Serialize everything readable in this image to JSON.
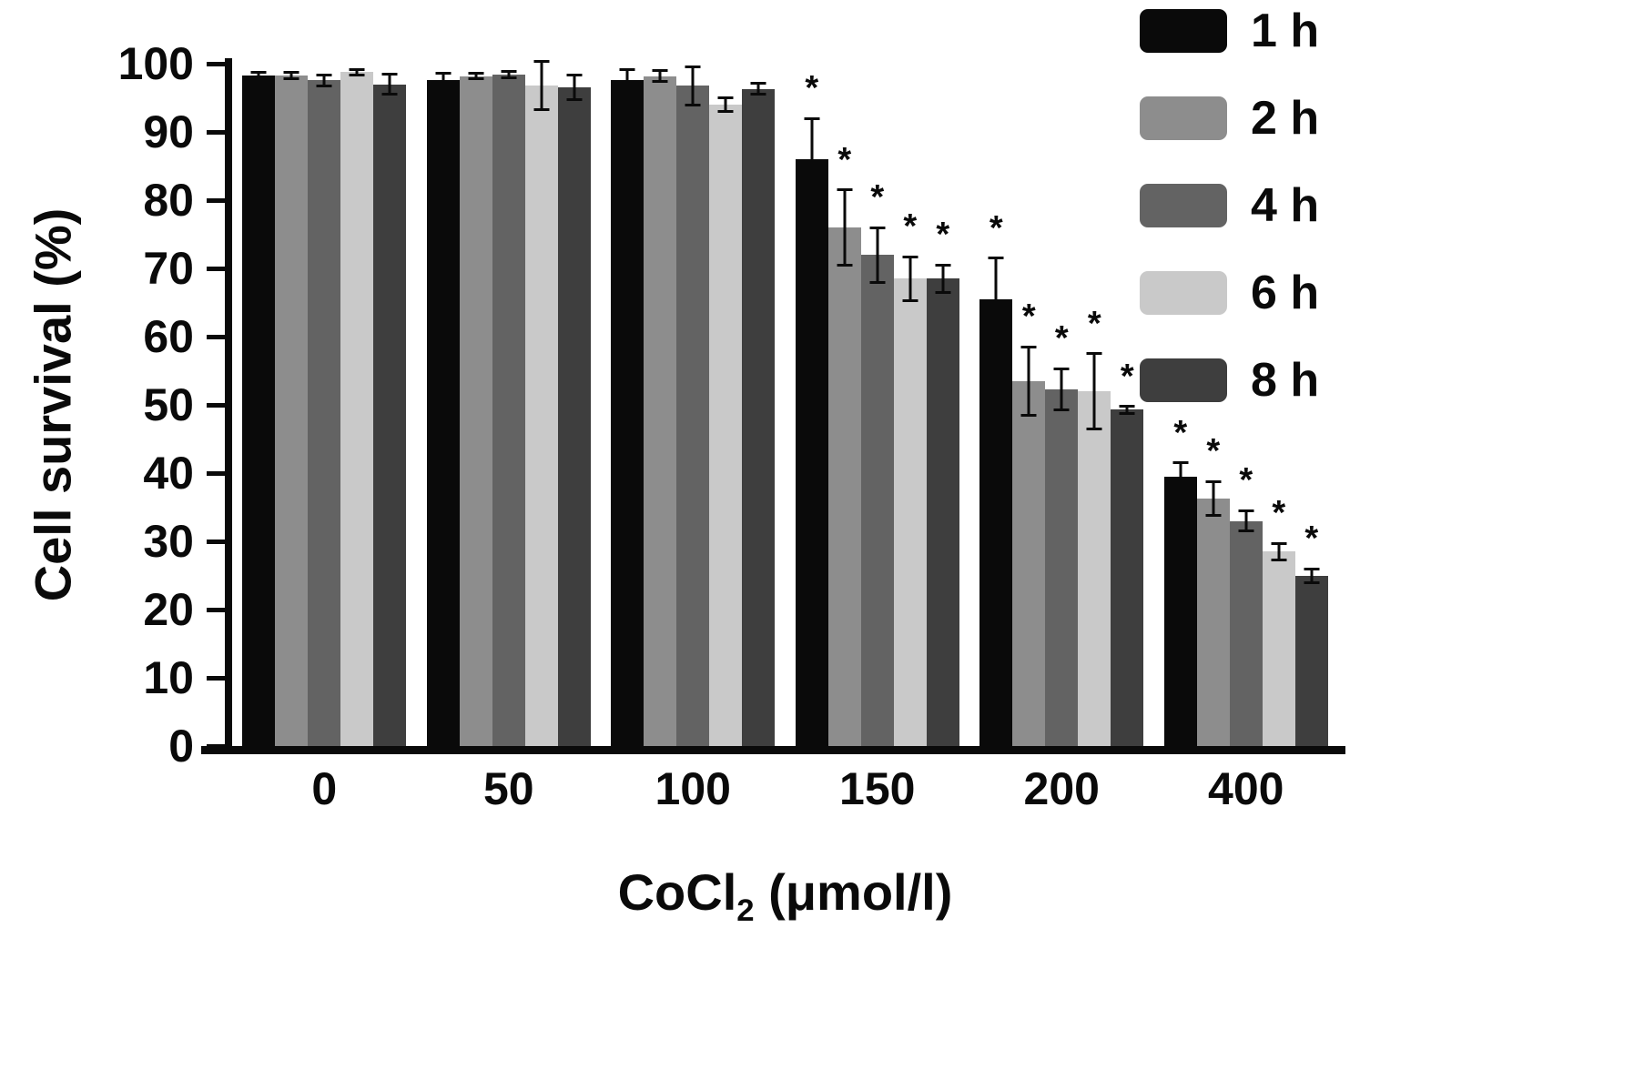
{
  "figure": {
    "background": "#ffffff",
    "axis_color": "#0a0a0a"
  },
  "chart_data": {
    "type": "bar",
    "title": "",
    "xlabel": "CoCl2 (μmol/l)",
    "xlabel_parts": {
      "prefix": "CoCl",
      "sub": "2",
      "suffix": " (μmol/l)"
    },
    "ylabel": "Cell survival (%)",
    "ylim": [
      0,
      100
    ],
    "yticks": [
      0,
      10,
      20,
      30,
      40,
      50,
      60,
      70,
      80,
      90,
      100
    ],
    "categories": [
      "0",
      "50",
      "100",
      "150",
      "200",
      "400"
    ],
    "grid": false,
    "legend_position": "top-right",
    "significance_marker": "*",
    "series": [
      {
        "name": "1 h",
        "color": "#0a0a0a",
        "values": [
          98.3,
          97.6,
          97.6,
          86.0,
          65.5,
          39.5
        ],
        "errors": [
          0.5,
          1.0,
          1.5,
          6.0,
          6.0,
          2.0
        ],
        "significant": [
          false,
          false,
          false,
          true,
          true,
          true
        ]
      },
      {
        "name": "2 h",
        "color": "#8d8d8d",
        "values": [
          98.3,
          98.2,
          98.2,
          76.0,
          53.5,
          36.3
        ],
        "errors": [
          0.5,
          0.4,
          0.8,
          5.5,
          5.0,
          2.5
        ],
        "significant": [
          false,
          false,
          false,
          true,
          true,
          true
        ]
      },
      {
        "name": "4 h",
        "color": "#636363",
        "values": [
          97.6,
          98.4,
          96.8,
          72.0,
          52.3,
          33.0
        ],
        "errors": [
          0.8,
          0.5,
          2.8,
          4.0,
          3.0,
          1.5
        ],
        "significant": [
          false,
          false,
          false,
          true,
          true,
          true
        ]
      },
      {
        "name": "6 h",
        "color": "#c9c9c9",
        "values": [
          98.8,
          96.8,
          94.0,
          68.5,
          52.0,
          28.5
        ],
        "errors": [
          0.4,
          3.5,
          1.0,
          3.2,
          5.5,
          1.2
        ],
        "significant": [
          false,
          false,
          false,
          true,
          true,
          true
        ]
      },
      {
        "name": "8 h",
        "color": "#3e3e3e",
        "values": [
          97.0,
          96.5,
          96.3,
          68.5,
          49.3,
          25.0
        ],
        "errors": [
          1.5,
          1.8,
          0.8,
          2.0,
          0.5,
          1.0
        ],
        "significant": [
          false,
          false,
          false,
          true,
          true,
          true
        ]
      }
    ]
  }
}
